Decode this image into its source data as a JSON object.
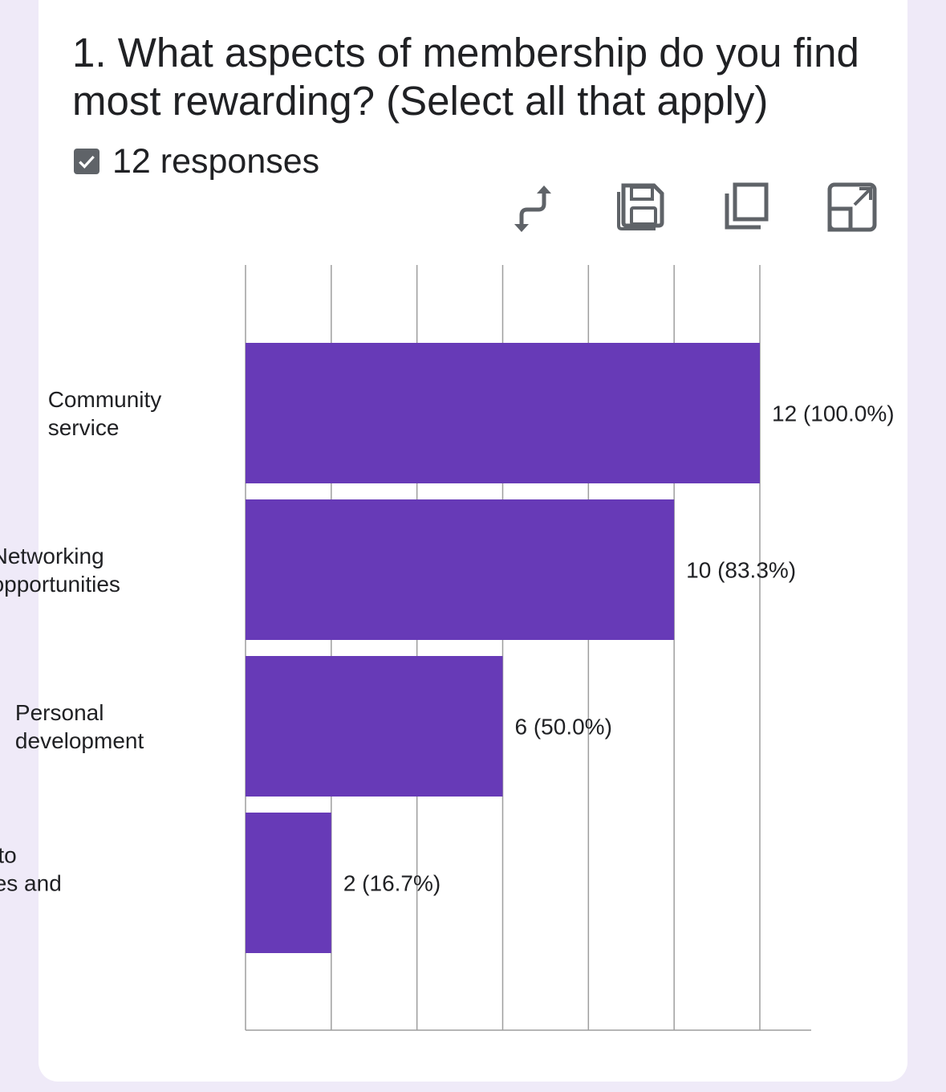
{
  "question": {
    "title": "1. What aspects of membership do you find most rewarding? (Select all that apply)",
    "responses_label": "12 responses"
  },
  "toolbar": {
    "icons": [
      "swap-icon",
      "save-icon",
      "copy-icon",
      "expand-icon"
    ]
  },
  "colors": {
    "bar": "#673ab7",
    "background": "#efeaf8",
    "grid": "#9e9e9e"
  },
  "chart_data": {
    "type": "bar",
    "orientation": "horizontal",
    "categories": [
      "Community service",
      "Networking opportunities",
      "Personal development",
      "Access to resources and training"
    ],
    "values": [
      12,
      10,
      6,
      2
    ],
    "data_labels": [
      "12 (100.0%)",
      "10 (83.3%)",
      "6 (50.0%)",
      "2 (16.7%)"
    ],
    "xlim": [
      0,
      12
    ],
    "grid": true,
    "legend": "none"
  }
}
